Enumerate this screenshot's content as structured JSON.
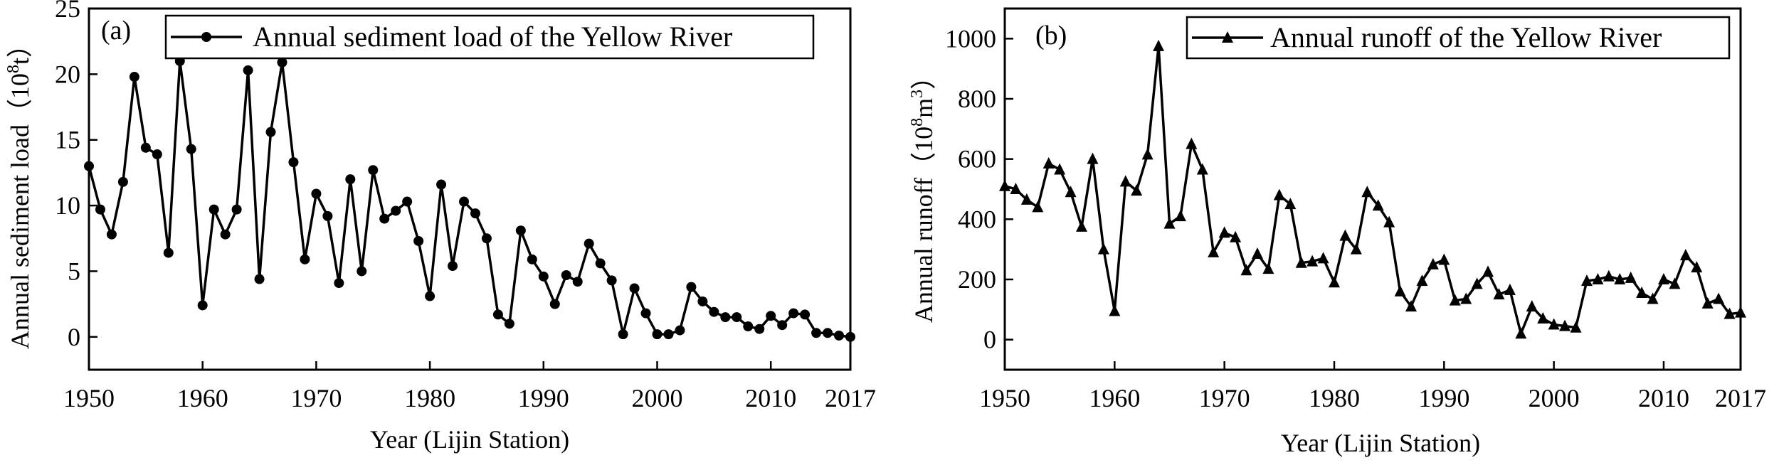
{
  "chart_data": [
    {
      "type": "line",
      "panel_label": "(a)",
      "xlabel": "Year (Lijin Station)",
      "ylabel_main": "Annual sediment load",
      "ylabel_unit_open": "（10",
      "ylabel_unit_sup": "8",
      "ylabel_unit_close": "t）",
      "xlim": [
        1950,
        2017
      ],
      "ylim": [
        -2.5,
        25
      ],
      "xticks": [
        1950,
        1960,
        1970,
        1980,
        1990,
        2000,
        2010,
        2017
      ],
      "yticks": [
        0,
        5,
        10,
        15,
        20,
        25
      ],
      "grid": false,
      "legend_position": "top-right",
      "marker": "circle",
      "series": [
        {
          "name": "Annual sediment load of the Yellow River",
          "x": [
            1950,
            1951,
            1952,
            1953,
            1954,
            1955,
            1956,
            1957,
            1958,
            1959,
            1960,
            1961,
            1962,
            1963,
            1964,
            1965,
            1966,
            1967,
            1968,
            1969,
            1970,
            1971,
            1972,
            1973,
            1974,
            1975,
            1976,
            1977,
            1978,
            1979,
            1980,
            1981,
            1982,
            1983,
            1984,
            1985,
            1986,
            1987,
            1988,
            1989,
            1990,
            1991,
            1992,
            1993,
            1994,
            1995,
            1996,
            1997,
            1998,
            1999,
            2000,
            2001,
            2002,
            2003,
            2004,
            2005,
            2006,
            2007,
            2008,
            2009,
            2010,
            2011,
            2012,
            2013,
            2014,
            2015,
            2016,
            2017
          ],
          "values": [
            13.0,
            9.7,
            7.8,
            11.8,
            19.8,
            14.4,
            13.9,
            6.4,
            21.0,
            14.3,
            2.4,
            9.7,
            7.8,
            9.7,
            20.3,
            4.4,
            15.6,
            20.9,
            13.3,
            5.9,
            10.9,
            9.2,
            4.1,
            12.0,
            5.0,
            12.7,
            9.0,
            9.6,
            10.3,
            7.3,
            3.1,
            11.6,
            5.4,
            10.3,
            9.4,
            7.5,
            1.7,
            1.0,
            8.1,
            5.9,
            4.6,
            2.5,
            4.7,
            4.2,
            7.1,
            5.6,
            4.3,
            0.2,
            3.7,
            1.8,
            0.2,
            0.2,
            0.5,
            3.8,
            2.7,
            1.9,
            1.5,
            1.5,
            0.8,
            0.6,
            1.6,
            0.9,
            1.8,
            1.7,
            0.3,
            0.3,
            0.1,
            0.0
          ]
        }
      ]
    },
    {
      "type": "line",
      "panel_label": "(b)",
      "xlabel": "Year (Lijin Station)",
      "ylabel_main": "Annual runoff",
      "ylabel_unit_open": "（10",
      "ylabel_unit_sup": "8",
      "ylabel_unit_mid": "m",
      "ylabel_unit_sup2": "3",
      "ylabel_unit_close": "）",
      "xlim": [
        1950,
        2017
      ],
      "ylim": [
        -100,
        1100
      ],
      "xticks": [
        1950,
        1960,
        1970,
        1980,
        1990,
        2000,
        2010,
        2017
      ],
      "yticks": [
        0,
        200,
        400,
        600,
        800,
        1000
      ],
      "grid": false,
      "legend_position": "top-right",
      "marker": "triangle",
      "series": [
        {
          "name": "Annual runoff of the Yellow River",
          "x": [
            1950,
            1951,
            1952,
            1953,
            1954,
            1955,
            1956,
            1957,
            1958,
            1959,
            1960,
            1961,
            1962,
            1963,
            1964,
            1965,
            1966,
            1967,
            1968,
            1969,
            1970,
            1971,
            1972,
            1973,
            1974,
            1975,
            1976,
            1977,
            1978,
            1979,
            1980,
            1981,
            1982,
            1983,
            1984,
            1985,
            1986,
            1987,
            1988,
            1989,
            1990,
            1991,
            1992,
            1993,
            1994,
            1995,
            1996,
            1997,
            1998,
            1999,
            2000,
            2001,
            2002,
            2003,
            2004,
            2005,
            2006,
            2007,
            2008,
            2009,
            2010,
            2011,
            2012,
            2013,
            2014,
            2015,
            2016,
            2017
          ],
          "values": [
            510,
            500,
            465,
            440,
            585,
            565,
            490,
            375,
            600,
            300,
            95,
            525,
            495,
            615,
            975,
            385,
            410,
            650,
            565,
            290,
            355,
            340,
            230,
            285,
            235,
            480,
            450,
            255,
            260,
            270,
            190,
            345,
            300,
            490,
            445,
            390,
            160,
            110,
            195,
            250,
            265,
            130,
            135,
            185,
            225,
            150,
            165,
            20,
            110,
            70,
            50,
            45,
            40,
            195,
            200,
            210,
            200,
            205,
            155,
            135,
            200,
            185,
            280,
            240,
            120,
            135,
            85,
            90
          ]
        }
      ]
    }
  ]
}
